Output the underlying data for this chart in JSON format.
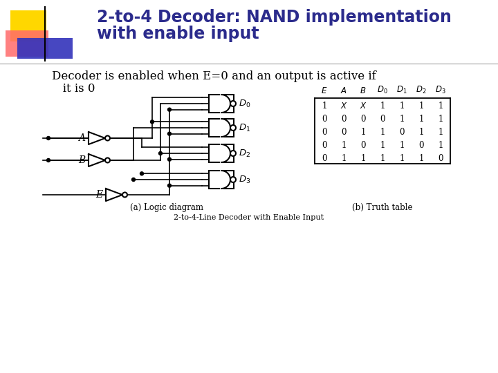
{
  "title_line1": "2-to-4 Decoder: NAND implementation",
  "title_line2": "with enable input",
  "title_color": "#2B2B8C",
  "title_fontsize": 17,
  "body_text_line1": "Decoder is enabled when E=0 and an output is active if",
  "body_text_line2": "   it is 0",
  "body_fontsize": 12,
  "caption_a": "(a) Logic diagram",
  "caption_b": "(b) Truth table",
  "bottom_caption": "2-to-4-Line Decoder with Enable Input",
  "bg_color": "#FFFFFF",
  "table_headers_raw": [
    "E",
    "A",
    "B",
    "D0",
    "D1",
    "D2",
    "D3"
  ],
  "table_rows": [
    [
      "1",
      "X",
      "X",
      "1",
      "1",
      "1",
      "1"
    ],
    [
      "0",
      "0",
      "0",
      "0",
      "1",
      "1",
      "1"
    ],
    [
      "0",
      "0",
      "1",
      "1",
      "0",
      "1",
      "1"
    ],
    [
      "0",
      "1",
      "0",
      "1",
      "1",
      "0",
      "1"
    ],
    [
      "0",
      "1",
      "1",
      "1",
      "1",
      "1",
      "0"
    ]
  ],
  "deco_yellow": "#FFD700",
  "deco_red": "#FF6B6B",
  "deco_blue": "#3333BB",
  "sep_line_color": "#BBBBBB",
  "lw": 1.2
}
